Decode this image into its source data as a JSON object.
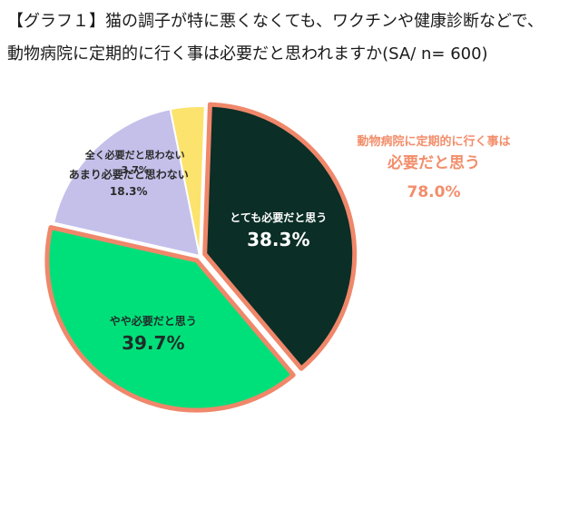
{
  "title": {
    "line1": "【グラフ１】猫の調子が特に悪くなくても、ワクチンや健康診断などで、",
    "line2": "動物病院に定期的に行く事は必要だと思われますか(SA/ n= 600)"
  },
  "callout": {
    "line1": "動物病院に定期的に行く事は",
    "line2": "必要だと思う",
    "value": "78.0%"
  },
  "chart_data": {
    "type": "pie",
    "title": "",
    "slices": [
      {
        "label": "とても必要だと思う",
        "value": 38.3,
        "value_label": "38.3%",
        "color": "#0b2e26",
        "text_color": "#ffffff",
        "highlight": true
      },
      {
        "label": "やや必要だと思う",
        "value": 39.7,
        "value_label": "39.7%",
        "color": "#00e07a",
        "text_color": "#1f2d29",
        "highlight": true
      },
      {
        "label": "あまり必要だと思わない",
        "value": 18.3,
        "value_label": "18.3%",
        "color": "#c4c0ea",
        "text_color": "#2b2b2b",
        "highlight": false
      },
      {
        "label": "全く必要だと思わない",
        "value": 3.7,
        "value_label": "3.7%",
        "color": "#fbe36d",
        "text_color": "#2b2b2b",
        "highlight": false
      }
    ],
    "highlight_color": "#f0876a"
  }
}
